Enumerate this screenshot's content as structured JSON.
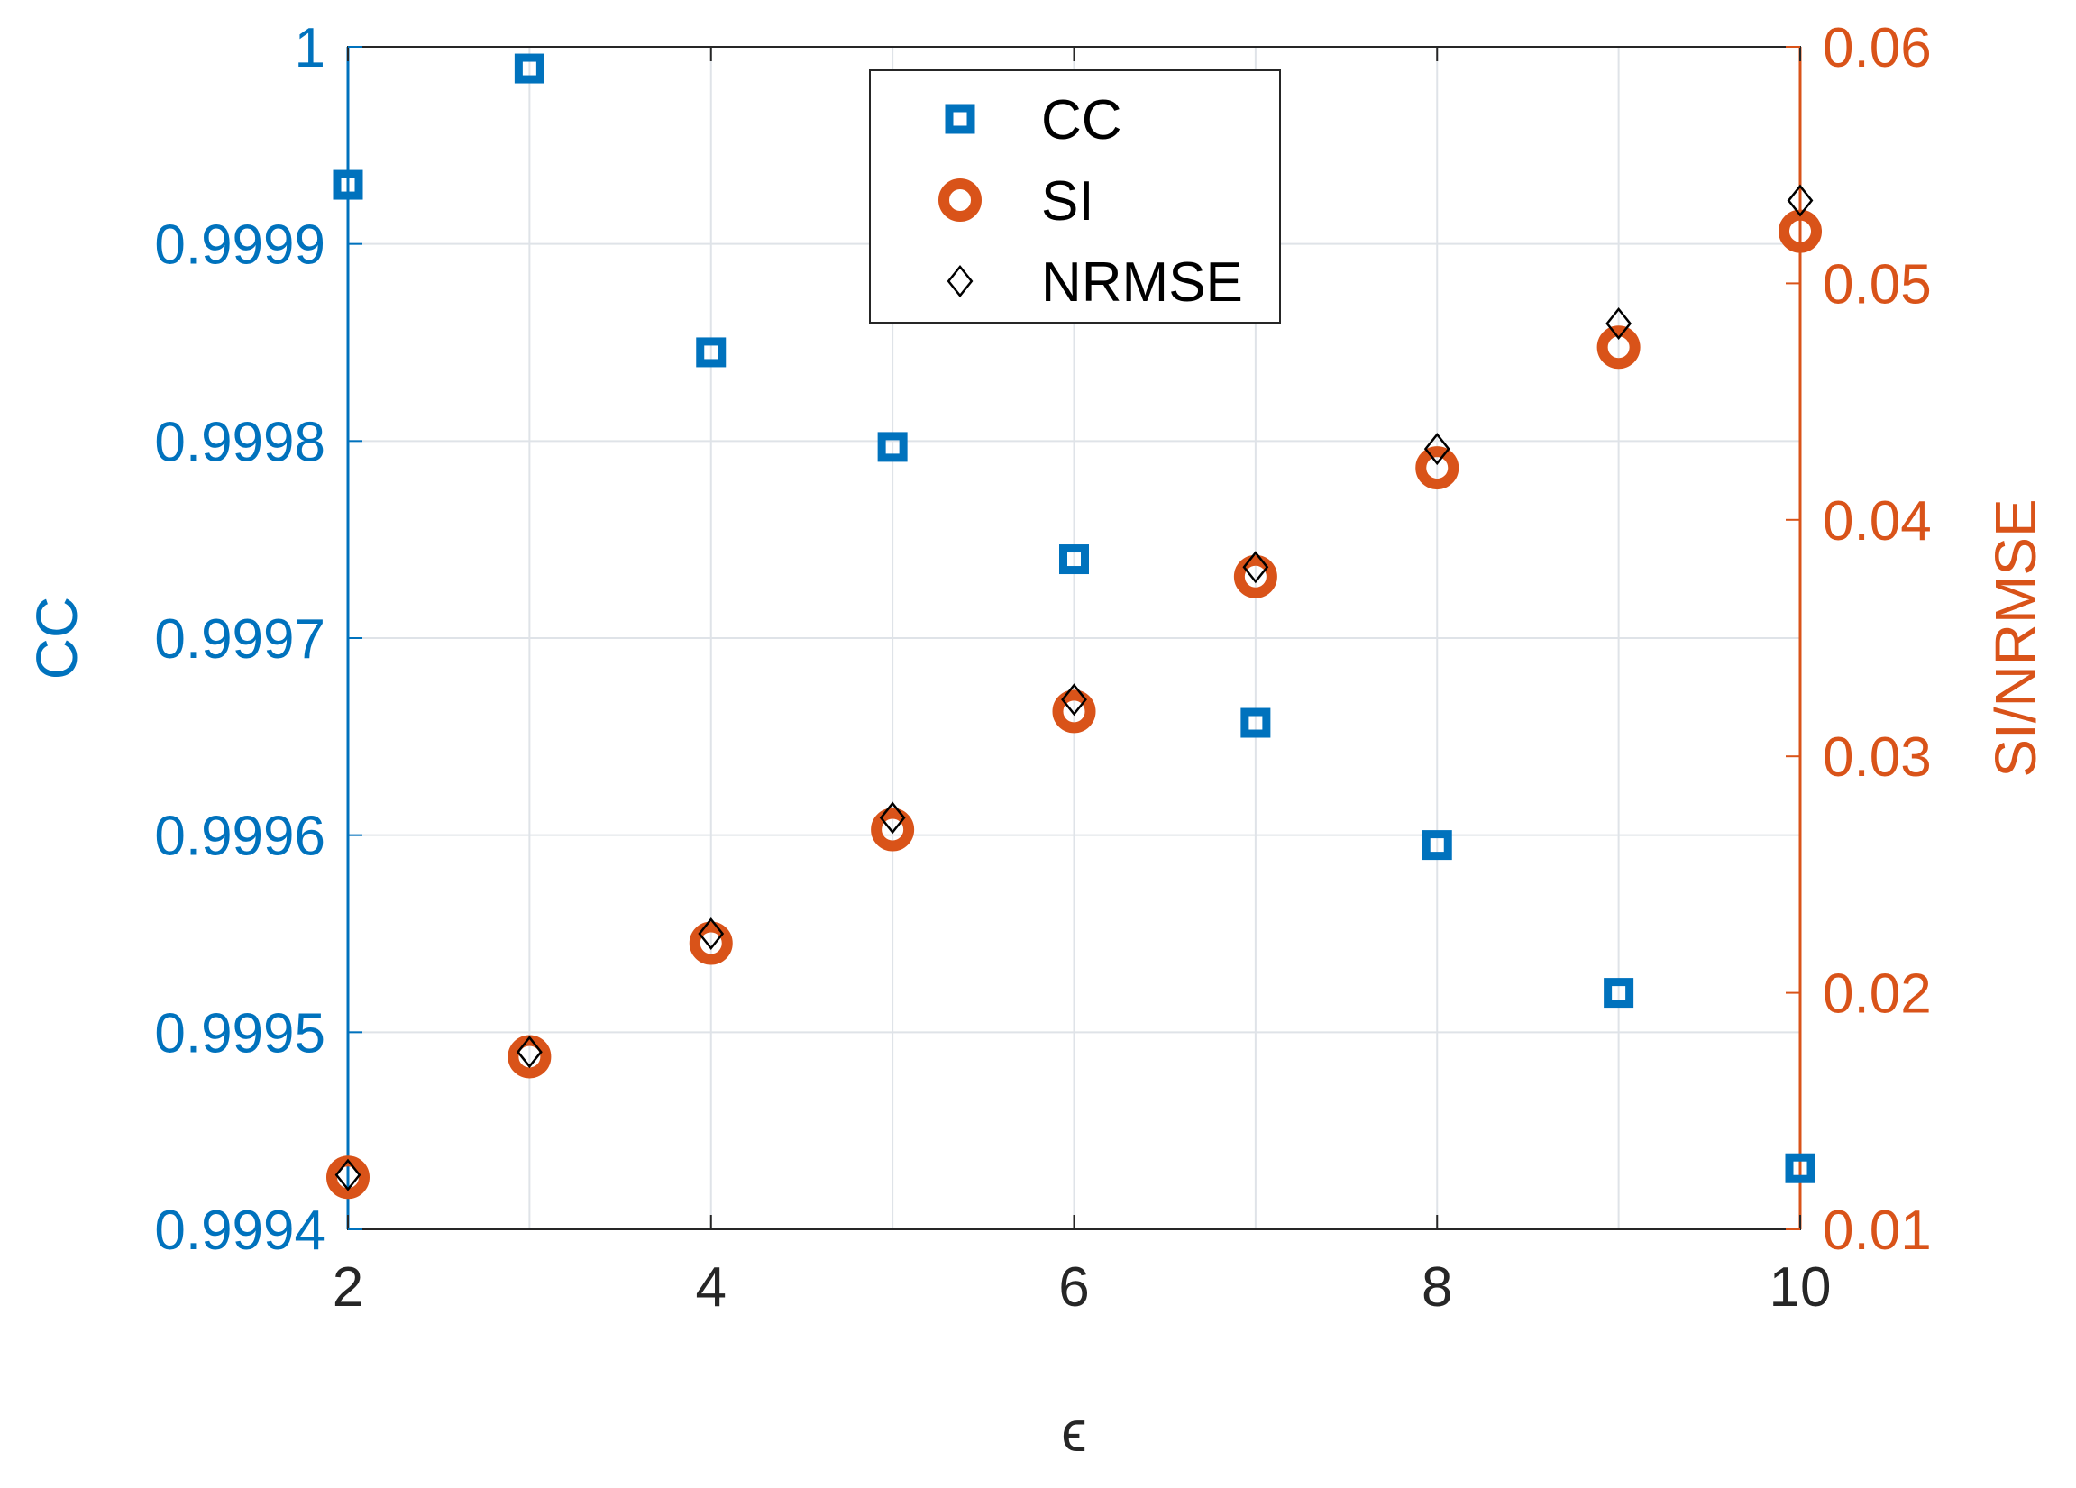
{
  "chart_data": {
    "type": "scatter",
    "xlabel": "ϵ",
    "ylabel_left": "CC",
    "ylabel_right": "SI/NRMSE",
    "xlim": [
      2,
      10
    ],
    "ylim_left": [
      0.9994,
      1
    ],
    "ylim_right": [
      0.01,
      0.06
    ],
    "x_ticks": [
      2,
      4,
      6,
      8,
      10
    ],
    "x_grid": [
      2,
      3,
      4,
      5,
      6,
      7,
      8,
      9,
      10
    ],
    "y_left_ticks": [
      "0.9994",
      "0.9995",
      "0.9996",
      "0.9997",
      "0.9998",
      "0.9999",
      "1"
    ],
    "y_right_ticks": [
      "0.01",
      "0.02",
      "0.03",
      "0.04",
      "0.05",
      "0.06"
    ],
    "grid": true,
    "legend_position": "top-center",
    "colors": {
      "left_axis": "#0072BD",
      "right_axis": "#D95319",
      "nrmse": "#000000"
    },
    "series": [
      {
        "name": "CC",
        "axis": "left",
        "marker": "square",
        "color": "#0072BD",
        "x": [
          2,
          3,
          4,
          5,
          6,
          7,
          8,
          9,
          10
        ],
        "values": [
          0.99993,
          0.999989,
          0.999845,
          0.999797,
          0.99974,
          0.999657,
          0.999595,
          0.99952,
          0.999431
        ]
      },
      {
        "name": "SI",
        "axis": "right",
        "marker": "circle",
        "color": "#D95319",
        "x": [
          2,
          3,
          4,
          5,
          6,
          7,
          8,
          9,
          10
        ],
        "values": [
          0.0122,
          0.0173,
          0.0221,
          0.0269,
          0.0319,
          0.0376,
          0.0422,
          0.0473,
          0.0522
        ]
      },
      {
        "name": "NRMSE",
        "axis": "right",
        "marker": "diamond",
        "color": "#000000",
        "x": [
          2,
          3,
          4,
          5,
          6,
          7,
          8,
          9,
          10
        ],
        "values": [
          0.0123,
          0.0175,
          0.0225,
          0.0274,
          0.0324,
          0.038,
          0.043,
          0.0483,
          0.0535
        ]
      }
    ]
  }
}
